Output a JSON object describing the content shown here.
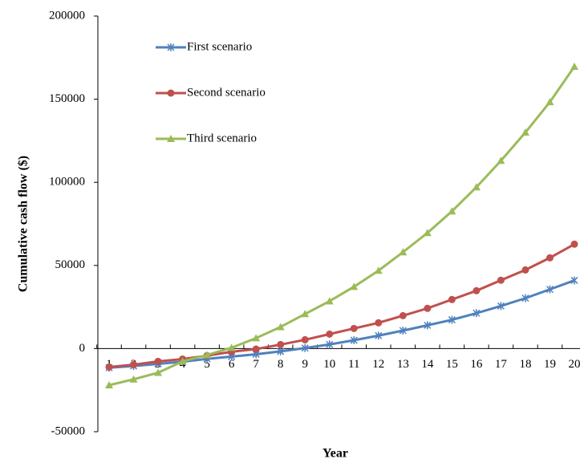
{
  "chart_data": {
    "type": "line",
    "x_label": "Year",
    "y_label": "Cumulative cash flow ($)",
    "categories": [
      "1",
      "2",
      "3",
      "4",
      "5",
      "6",
      "7",
      "8",
      "9",
      "10",
      "11",
      "12",
      "13",
      "14",
      "15",
      "16",
      "17",
      "18",
      "19",
      "20"
    ],
    "series": [
      {
        "name": "First scenario",
        "color": "#4f81bd",
        "marker": "asterisk",
        "values": [
          -11500,
          -10500,
          -9200,
          -7900,
          -6200,
          -4800,
          -3400,
          -1700,
          300,
          2500,
          5000,
          7800,
          10800,
          14000,
          17300,
          21300,
          25600,
          30300,
          35600,
          41000
        ]
      },
      {
        "name": "Second scenario",
        "color": "#c0504d",
        "marker": "circle",
        "values": [
          -11100,
          -9700,
          -7700,
          -6300,
          -4300,
          -1900,
          -300,
          2400,
          5300,
          8700,
          12100,
          15500,
          19800,
          24200,
          29500,
          34800,
          41100,
          47300,
          54600,
          62800
        ]
      },
      {
        "name": "Third scenario",
        "color": "#9bbb59",
        "marker": "triangle",
        "values": [
          -22000,
          -18500,
          -14500,
          -7700,
          -3900,
          500,
          6300,
          13000,
          20800,
          28500,
          37200,
          46900,
          58000,
          69600,
          82600,
          97100,
          113000,
          130000,
          148300,
          169600
        ]
      }
    ],
    "ylim": [
      -50000,
      200000
    ],
    "yticks": [
      -50000,
      0,
      50000,
      100000,
      150000,
      200000
    ],
    "legend": "upper-left"
  }
}
